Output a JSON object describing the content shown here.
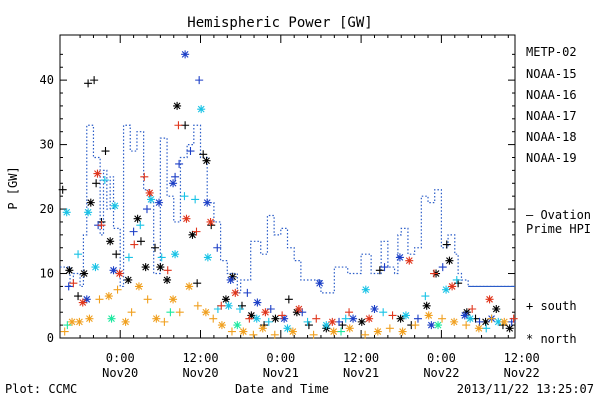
{
  "chart_data": {
    "type": "scatter",
    "title": "Hemispheric Power [GW]",
    "ylabel": "P [GW]",
    "xlabel": "Date and Time",
    "ylim": [
      0,
      47
    ],
    "xlim_hours": [
      -9,
      59
    ],
    "y_ticks": [
      0,
      10,
      20,
      30,
      40
    ],
    "x_ticks": [
      {
        "h": 0,
        "top": "0:00",
        "bottom": "Nov20"
      },
      {
        "h": 12,
        "top": "12:00",
        "bottom": "Nov20"
      },
      {
        "h": 24,
        "top": "0:00",
        "bottom": "Nov21"
      },
      {
        "h": 36,
        "top": "12:00",
        "bottom": "Nov21"
      },
      {
        "h": 48,
        "top": "0:00",
        "bottom": "Nov22"
      },
      {
        "h": 60,
        "top": "12:00",
        "bottom": "Nov22"
      }
    ],
    "legend": {
      "placement": "right",
      "series_labels": [
        "METP-02",
        "NOAA-15",
        "NOAA-16",
        "NOAA-17",
        "NOAA-18",
        "NOAA-19"
      ],
      "ovation_label_1": "— Ovation",
      "ovation_label_2": "Prime HPI",
      "south_label": "+ south",
      "north_label": "* north"
    },
    "footer": {
      "left": "Plot: CCMC",
      "right": "2013/11/22 13:25:07"
    },
    "colors": {
      "METP-02": "#000000",
      "NOAA-15": "#1c3fc6",
      "NOAA-16": "#19c3e6",
      "NOAA-17": "#1de8a0",
      "NOAA-18": "#f0a020",
      "NOAA-19": "#e0361c",
      "ovation": "#2a5cc8"
    },
    "ovation": [
      [
        -9,
        11
      ],
      [
        -7.5,
        8
      ],
      [
        -7,
        10
      ],
      [
        -6,
        8
      ],
      [
        -5.5,
        16
      ],
      [
        -5,
        33
      ],
      [
        -4,
        28
      ],
      [
        -3,
        16
      ],
      [
        -2.5,
        26
      ],
      [
        -2,
        20
      ],
      [
        -1.5,
        25
      ],
      [
        -1,
        17
      ],
      [
        0,
        8
      ],
      [
        0.5,
        33
      ],
      [
        1.5,
        29
      ],
      [
        2.5,
        32
      ],
      [
        3.5,
        23
      ],
      [
        4.5,
        21
      ],
      [
        5,
        10
      ],
      [
        6,
        31
      ],
      [
        7,
        22
      ],
      [
        8,
        18
      ],
      [
        9,
        28
      ],
      [
        10,
        30
      ],
      [
        11,
        33
      ],
      [
        12,
        28
      ],
      [
        13,
        21
      ],
      [
        14,
        18
      ],
      [
        15,
        12
      ],
      [
        16,
        10
      ],
      [
        17.5,
        7
      ],
      [
        18,
        9
      ],
      [
        19.5,
        15
      ],
      [
        21,
        13
      ],
      [
        22,
        19
      ],
      [
        23,
        16
      ],
      [
        24,
        17
      ],
      [
        25,
        14
      ],
      [
        26,
        12
      ],
      [
        27,
        9
      ],
      [
        30,
        7
      ],
      [
        32,
        11
      ],
      [
        34,
        10
      ],
      [
        36,
        13
      ],
      [
        37.5,
        10
      ],
      [
        39,
        15
      ],
      [
        40,
        11
      ],
      [
        41,
        10
      ],
      [
        41.5,
        16
      ],
      [
        42,
        17
      ],
      [
        43,
        13
      ],
      [
        44,
        14
      ],
      [
        45,
        22
      ],
      [
        46,
        21
      ],
      [
        47,
        23
      ],
      [
        48,
        14
      ],
      [
        49,
        16
      ],
      [
        50,
        13
      ],
      [
        50.5,
        10
      ],
      [
        51,
        9
      ],
      [
        52,
        8
      ],
      [
        59,
        8
      ]
    ],
    "series": [
      {
        "name": "METP-02",
        "points": [
          [
            -8.6,
            23,
            "s"
          ],
          [
            -7.6,
            10.5,
            "n"
          ],
          [
            -6.3,
            6.5,
            "s"
          ],
          [
            -5.4,
            10,
            "n"
          ],
          [
            -4.8,
            39.5,
            "s"
          ],
          [
            -3.9,
            40,
            "s"
          ],
          [
            -4.4,
            21,
            "n"
          ],
          [
            -3.6,
            24,
            "s"
          ],
          [
            -2.8,
            18,
            "s"
          ],
          [
            -2.2,
            29,
            "s"
          ],
          [
            -1.5,
            15,
            "n"
          ],
          [
            -0.6,
            13,
            "s"
          ],
          [
            1.2,
            9,
            "n"
          ],
          [
            2.6,
            18.5,
            "n"
          ],
          [
            3.1,
            15,
            "s"
          ],
          [
            3.8,
            11,
            "n"
          ],
          [
            5.2,
            14,
            "s"
          ],
          [
            6,
            11,
            "n"
          ],
          [
            7,
            9,
            "n"
          ],
          [
            8.5,
            36,
            "n"
          ],
          [
            9.7,
            33,
            "s"
          ],
          [
            10.8,
            16,
            "n"
          ],
          [
            11.5,
            8.5,
            "s"
          ],
          [
            12.4,
            28.5,
            "s"
          ],
          [
            12.9,
            27.5,
            "n"
          ],
          [
            13.6,
            17.5,
            "s"
          ],
          [
            15.8,
            6,
            "n"
          ],
          [
            16.8,
            9.5,
            "n"
          ],
          [
            18.2,
            5,
            "s"
          ],
          [
            19.6,
            3.5,
            "n"
          ],
          [
            21.5,
            2,
            "s"
          ],
          [
            23.2,
            3,
            "n"
          ],
          [
            25.2,
            6,
            "s"
          ],
          [
            26.4,
            4,
            "n"
          ],
          [
            28.2,
            2,
            "s"
          ],
          [
            30.8,
            1.5,
            "n"
          ],
          [
            33.2,
            2,
            "s"
          ],
          [
            36.1,
            2.5,
            "n"
          ],
          [
            38.8,
            10.5,
            "s"
          ],
          [
            41.9,
            3,
            "n"
          ],
          [
            43.5,
            2,
            "s"
          ],
          [
            45.8,
            5,
            "n"
          ],
          [
            47.2,
            10,
            "n"
          ],
          [
            48.8,
            14.5,
            "s"
          ],
          [
            49.2,
            12,
            "n"
          ],
          [
            50.5,
            8.5,
            "s"
          ],
          [
            51.8,
            4,
            "n"
          ],
          [
            53.1,
            3,
            "s"
          ],
          [
            54.6,
            2.5,
            "n"
          ],
          [
            56.2,
            4.5,
            "n"
          ],
          [
            57.2,
            2,
            "s"
          ],
          [
            58.2,
            1.5,
            "n"
          ]
        ]
      },
      {
        "name": "NOAA-15",
        "points": [
          [
            -7.7,
            8,
            "s"
          ],
          [
            -5,
            6,
            "n"
          ],
          [
            -3.3,
            17.5,
            "s"
          ],
          [
            -1,
            10.5,
            "n"
          ],
          [
            2,
            16.5,
            "s"
          ],
          [
            4,
            20,
            "s"
          ],
          [
            5.8,
            21,
            "n"
          ],
          [
            7.9,
            24,
            "n"
          ],
          [
            8.2,
            25,
            "s"
          ],
          [
            8.8,
            27,
            "s"
          ],
          [
            9.7,
            44,
            "n"
          ],
          [
            10.5,
            29,
            "s"
          ],
          [
            11.8,
            40,
            "s"
          ],
          [
            13,
            21,
            "n"
          ],
          [
            14.5,
            14,
            "s"
          ],
          [
            16.5,
            9,
            "n"
          ],
          [
            19,
            7,
            "s"
          ],
          [
            20.5,
            5.5,
            "n"
          ],
          [
            22.5,
            4.5,
            "s"
          ],
          [
            24.5,
            3,
            "n"
          ],
          [
            27.2,
            4,
            "s"
          ],
          [
            29.8,
            8.5,
            "n"
          ],
          [
            32.7,
            2.5,
            "s"
          ],
          [
            34.8,
            3,
            "n"
          ],
          [
            38,
            4.5,
            "n"
          ],
          [
            39.5,
            11,
            "s"
          ],
          [
            41.8,
            12.5,
            "n"
          ],
          [
            44.5,
            3,
            "s"
          ],
          [
            46.5,
            2,
            "n"
          ],
          [
            48.2,
            11,
            "s"
          ],
          [
            51.5,
            3.5,
            "n"
          ],
          [
            53.7,
            2.5,
            "s"
          ],
          [
            55.5,
            3,
            "n"
          ],
          [
            58.5,
            2.5,
            "s"
          ]
        ]
      },
      {
        "name": "NOAA-16",
        "points": [
          [
            -8,
            19.5,
            "n"
          ],
          [
            -6.3,
            13,
            "s"
          ],
          [
            -4.8,
            19.5,
            "n"
          ],
          [
            -3.7,
            11,
            "n"
          ],
          [
            -2.3,
            24.5,
            "s"
          ],
          [
            -0.8,
            20.5,
            "n"
          ],
          [
            1.3,
            12.5,
            "s"
          ],
          [
            3,
            17.5,
            "s"
          ],
          [
            4.6,
            21.5,
            "n"
          ],
          [
            6.2,
            12.5,
            "s"
          ],
          [
            8.2,
            13,
            "n"
          ],
          [
            9.6,
            22,
            "s"
          ],
          [
            11.2,
            21.5,
            "s"
          ],
          [
            12.1,
            35.5,
            "n"
          ],
          [
            13.1,
            12.5,
            "n"
          ],
          [
            14.6,
            4.5,
            "s"
          ],
          [
            16.2,
            5,
            "n"
          ],
          [
            17.9,
            4.5,
            "s"
          ],
          [
            20.4,
            3,
            "n"
          ],
          [
            22.2,
            2.5,
            "s"
          ],
          [
            25,
            1.5,
            "n"
          ],
          [
            28,
            2.5,
            "s"
          ],
          [
            30.8,
            2,
            "n"
          ],
          [
            33.7,
            3,
            "s"
          ],
          [
            36.7,
            7.5,
            "n"
          ],
          [
            39.3,
            4,
            "s"
          ],
          [
            42.7,
            3.5,
            "n"
          ],
          [
            45.6,
            6.5,
            "s"
          ],
          [
            48.7,
            7.5,
            "n"
          ],
          [
            50.3,
            9,
            "s"
          ],
          [
            52.3,
            3,
            "n"
          ],
          [
            54.7,
            1.5,
            "s"
          ],
          [
            56.5,
            2.5,
            "n"
          ]
        ]
      },
      {
        "name": "NOAA-17",
        "points": [
          [
            -7.9,
            2,
            "s"
          ],
          [
            -1.3,
            3,
            "n"
          ],
          [
            7.5,
            4,
            "s"
          ],
          [
            17.5,
            2,
            "n"
          ],
          [
            33,
            1,
            "s"
          ],
          [
            47.5,
            2,
            "n"
          ]
        ]
      },
      {
        "name": "NOAA-18",
        "points": [
          [
            -8.3,
            1,
            "s"
          ],
          [
            -7.2,
            2.5,
            "n"
          ],
          [
            -6.1,
            2.5,
            "n"
          ],
          [
            -4.6,
            3,
            "n"
          ],
          [
            -3.1,
            6,
            "s"
          ],
          [
            -1.7,
            6.5,
            "n"
          ],
          [
            -0.4,
            7.5,
            "s"
          ],
          [
            0.8,
            2.5,
            "n"
          ],
          [
            1.7,
            4,
            "s"
          ],
          [
            2.8,
            8,
            "n"
          ],
          [
            4.1,
            6,
            "s"
          ],
          [
            5.4,
            3,
            "n"
          ],
          [
            6.6,
            2.5,
            "s"
          ],
          [
            7.9,
            6,
            "n"
          ],
          [
            8.9,
            4,
            "s"
          ],
          [
            10.3,
            8,
            "n"
          ],
          [
            11.6,
            5,
            "s"
          ],
          [
            12.8,
            4,
            "n"
          ],
          [
            13.9,
            3,
            "s"
          ],
          [
            15.2,
            2,
            "n"
          ],
          [
            16.7,
            1,
            "s"
          ],
          [
            18.4,
            1,
            "n"
          ],
          [
            19.9,
            0.5,
            "s"
          ],
          [
            21.3,
            1.5,
            "n"
          ],
          [
            23.1,
            0.5,
            "s"
          ],
          [
            25.8,
            1,
            "n"
          ],
          [
            28.9,
            0.5,
            "s"
          ],
          [
            31.9,
            1,
            "n"
          ],
          [
            34.3,
            1.5,
            "n"
          ],
          [
            36.6,
            0.5,
            "s"
          ],
          [
            38.5,
            1,
            "n"
          ],
          [
            40.3,
            1.5,
            "s"
          ],
          [
            42.2,
            1,
            "n"
          ],
          [
            44.1,
            2,
            "s"
          ],
          [
            46.1,
            3.5,
            "n"
          ],
          [
            48.1,
            3,
            "s"
          ],
          [
            49.9,
            2.5,
            "n"
          ],
          [
            51.7,
            2,
            "s"
          ],
          [
            53.6,
            1.5,
            "n"
          ],
          [
            55.5,
            3,
            "s"
          ],
          [
            57.4,
            2.5,
            "n"
          ]
        ]
      },
      {
        "name": "NOAA-19",
        "points": [
          [
            -7,
            8.5,
            "s"
          ],
          [
            -5.6,
            5.5,
            "n"
          ],
          [
            -3.4,
            25.5,
            "n"
          ],
          [
            -2.8,
            17.5,
            "s"
          ],
          [
            -0.1,
            10,
            "n"
          ],
          [
            2.1,
            14.5,
            "s"
          ],
          [
            3.6,
            25,
            "s"
          ],
          [
            4.4,
            22.5,
            "n"
          ],
          [
            7.1,
            10.5,
            "s"
          ],
          [
            8.7,
            33,
            "s"
          ],
          [
            9.9,
            18.5,
            "n"
          ],
          [
            11.4,
            16.5,
            "s"
          ],
          [
            13.5,
            18,
            "n"
          ],
          [
            15.1,
            5,
            "s"
          ],
          [
            17.2,
            7,
            "n"
          ],
          [
            19.3,
            3,
            "s"
          ],
          [
            21.7,
            4,
            "n"
          ],
          [
            24.2,
            3.5,
            "s"
          ],
          [
            26.7,
            4.5,
            "n"
          ],
          [
            29.3,
            3,
            "s"
          ],
          [
            31.7,
            2.5,
            "n"
          ],
          [
            34.2,
            4,
            "s"
          ],
          [
            37.2,
            3,
            "n"
          ],
          [
            40.7,
            3.5,
            "s"
          ],
          [
            43.2,
            12,
            "n"
          ],
          [
            46.9,
            10,
            "s"
          ],
          [
            49.6,
            8,
            "n"
          ],
          [
            52.6,
            4.5,
            "s"
          ],
          [
            55.2,
            6,
            "n"
          ],
          [
            58.8,
            3,
            "s"
          ]
        ]
      }
    ]
  }
}
